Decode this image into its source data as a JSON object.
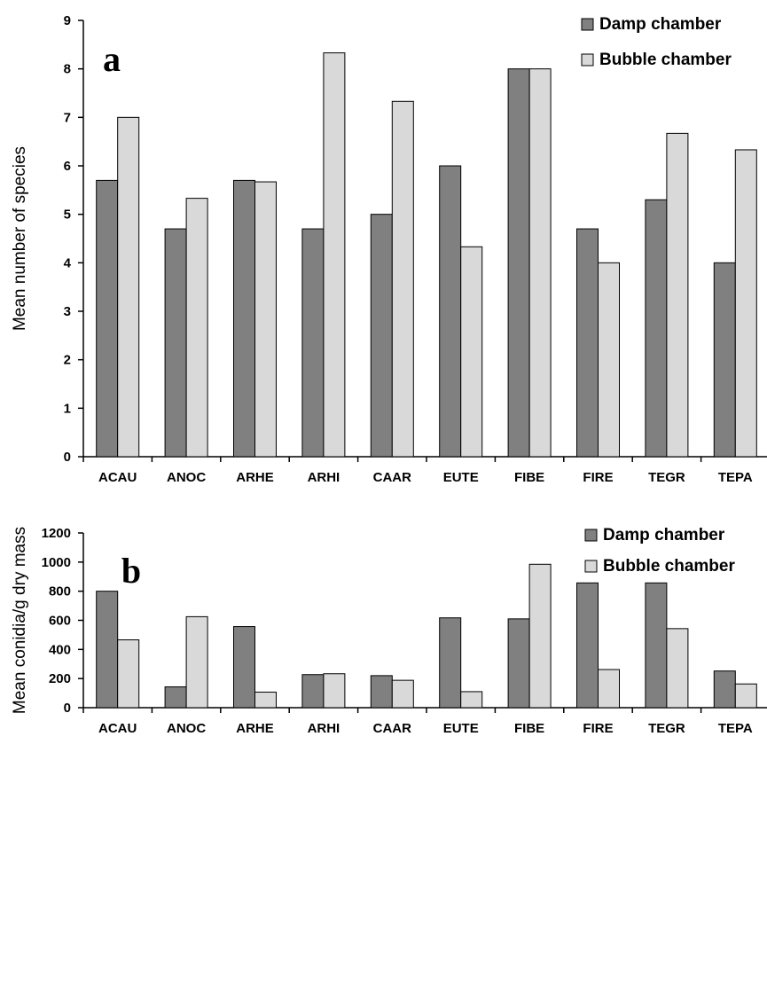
{
  "chart_data": [
    {
      "type": "bar",
      "panel_label": "a",
      "ylabel": "Mean number of species",
      "ylim": [
        0,
        9
      ],
      "yticks": [
        0,
        1,
        2,
        3,
        4,
        5,
        6,
        7,
        8,
        9
      ],
      "categories": [
        "ACAU",
        "ANOC",
        "ARHE",
        "ARHI",
        "CAAR",
        "EUTE",
        "FIBE",
        "FIRE",
        "TEGR",
        "TEPA"
      ],
      "series": [
        {
          "name": "Damp chamber",
          "color": "#808080",
          "values": [
            5.7,
            4.7,
            5.7,
            4.7,
            5.0,
            6.0,
            8.0,
            4.7,
            5.3,
            4.0
          ]
        },
        {
          "name": "Bubble chamber",
          "color": "#d9d9d9",
          "values": [
            7.0,
            5.33,
            5.67,
            8.33,
            7.33,
            4.33,
            8.0,
            4.0,
            6.67,
            6.33
          ]
        }
      ],
      "legend": "top-right",
      "grid": false
    },
    {
      "type": "bar",
      "panel_label": "b",
      "ylabel": "Mean conidia/g dry mass",
      "ylim": [
        0,
        1200
      ],
      "yticks": [
        0,
        200,
        400,
        600,
        800,
        1000,
        1200
      ],
      "categories": [
        "ACAU",
        "ANOC",
        "ARHE",
        "ARHI",
        "CAAR",
        "EUTE",
        "FIBE",
        "FIRE",
        "TEGR",
        "TEPA"
      ],
      "series": [
        {
          "name": "Damp chamber",
          "color": "#808080",
          "values": [
            800,
            143,
            557,
            227,
            220,
            617,
            610,
            857,
            857,
            252
          ]
        },
        {
          "name": "Bubble chamber",
          "color": "#d9d9d9",
          "values": [
            466,
            625,
            107,
            233,
            188,
            110,
            985,
            262,
            543,
            163
          ]
        }
      ],
      "legend": "top-right",
      "grid": false
    }
  ]
}
